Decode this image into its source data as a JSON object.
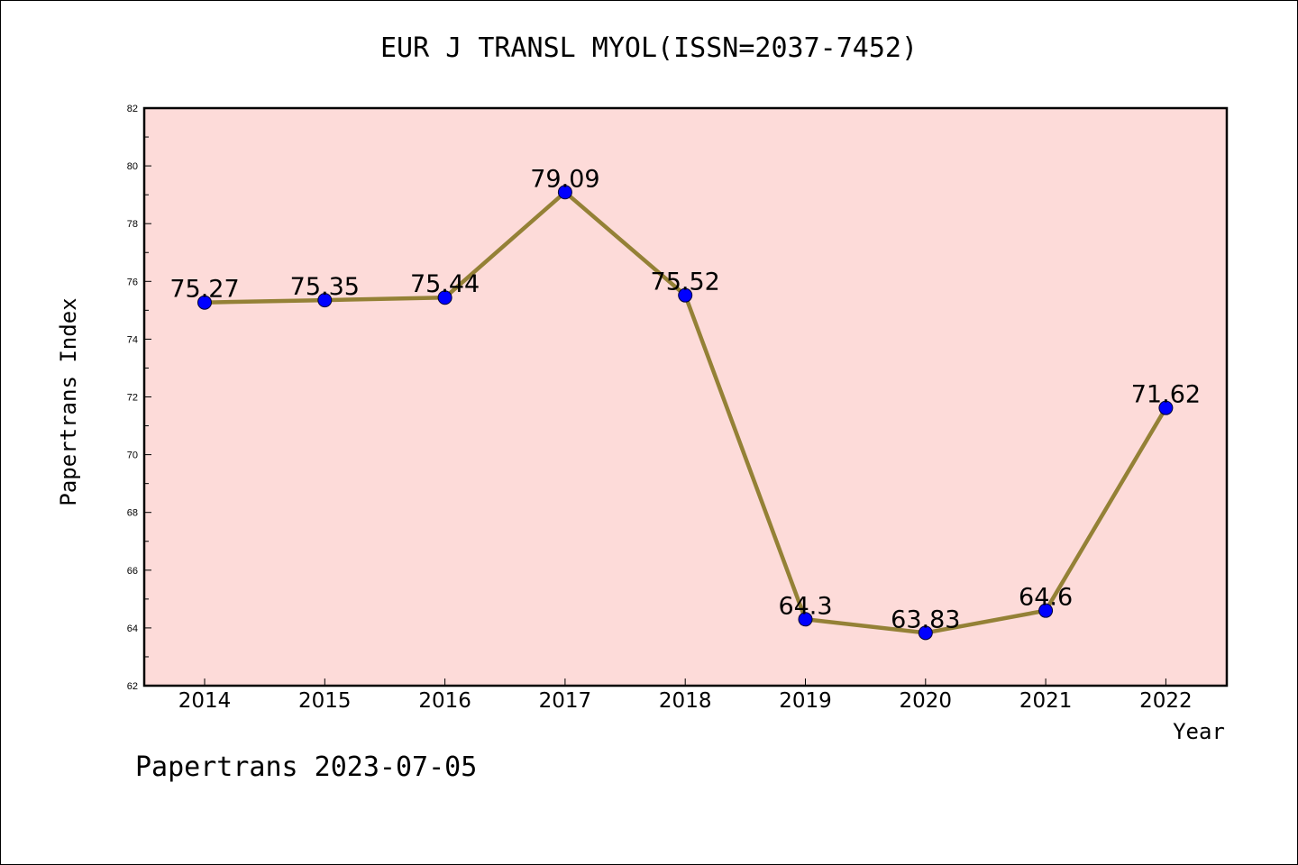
{
  "title": "EUR J TRANSL MYOL(ISSN=2037-7452)",
  "footer": "Papertrans 2023-07-05",
  "colors": {
    "plot_background": "#FDDBD9",
    "line": "#948136",
    "marker": "#0000FF"
  },
  "chart_data": {
    "type": "line",
    "title": "EUR J TRANSL MYOL(ISSN=2037-7452)",
    "xlabel": "Year",
    "ylabel": "Papertrans Index",
    "categories": [
      "2014",
      "2015",
      "2016",
      "2017",
      "2018",
      "2019",
      "2020",
      "2021",
      "2022"
    ],
    "series": [
      {
        "values": [
          75.27,
          75.35,
          75.44,
          79.09,
          75.52,
          64.3,
          63.83,
          64.6,
          71.62
        ],
        "labels": [
          "75.27",
          "75.35",
          "75.44",
          "79.09",
          "75.52",
          "64.3",
          "63.83",
          "64.6",
          "71.62"
        ]
      }
    ],
    "ylim": [
      62,
      82
    ],
    "yticks": [
      "62",
      "64",
      "66",
      "68",
      "70",
      "72",
      "74",
      "76",
      "78",
      "80",
      "82"
    ],
    "grid": false,
    "legend": "none"
  }
}
